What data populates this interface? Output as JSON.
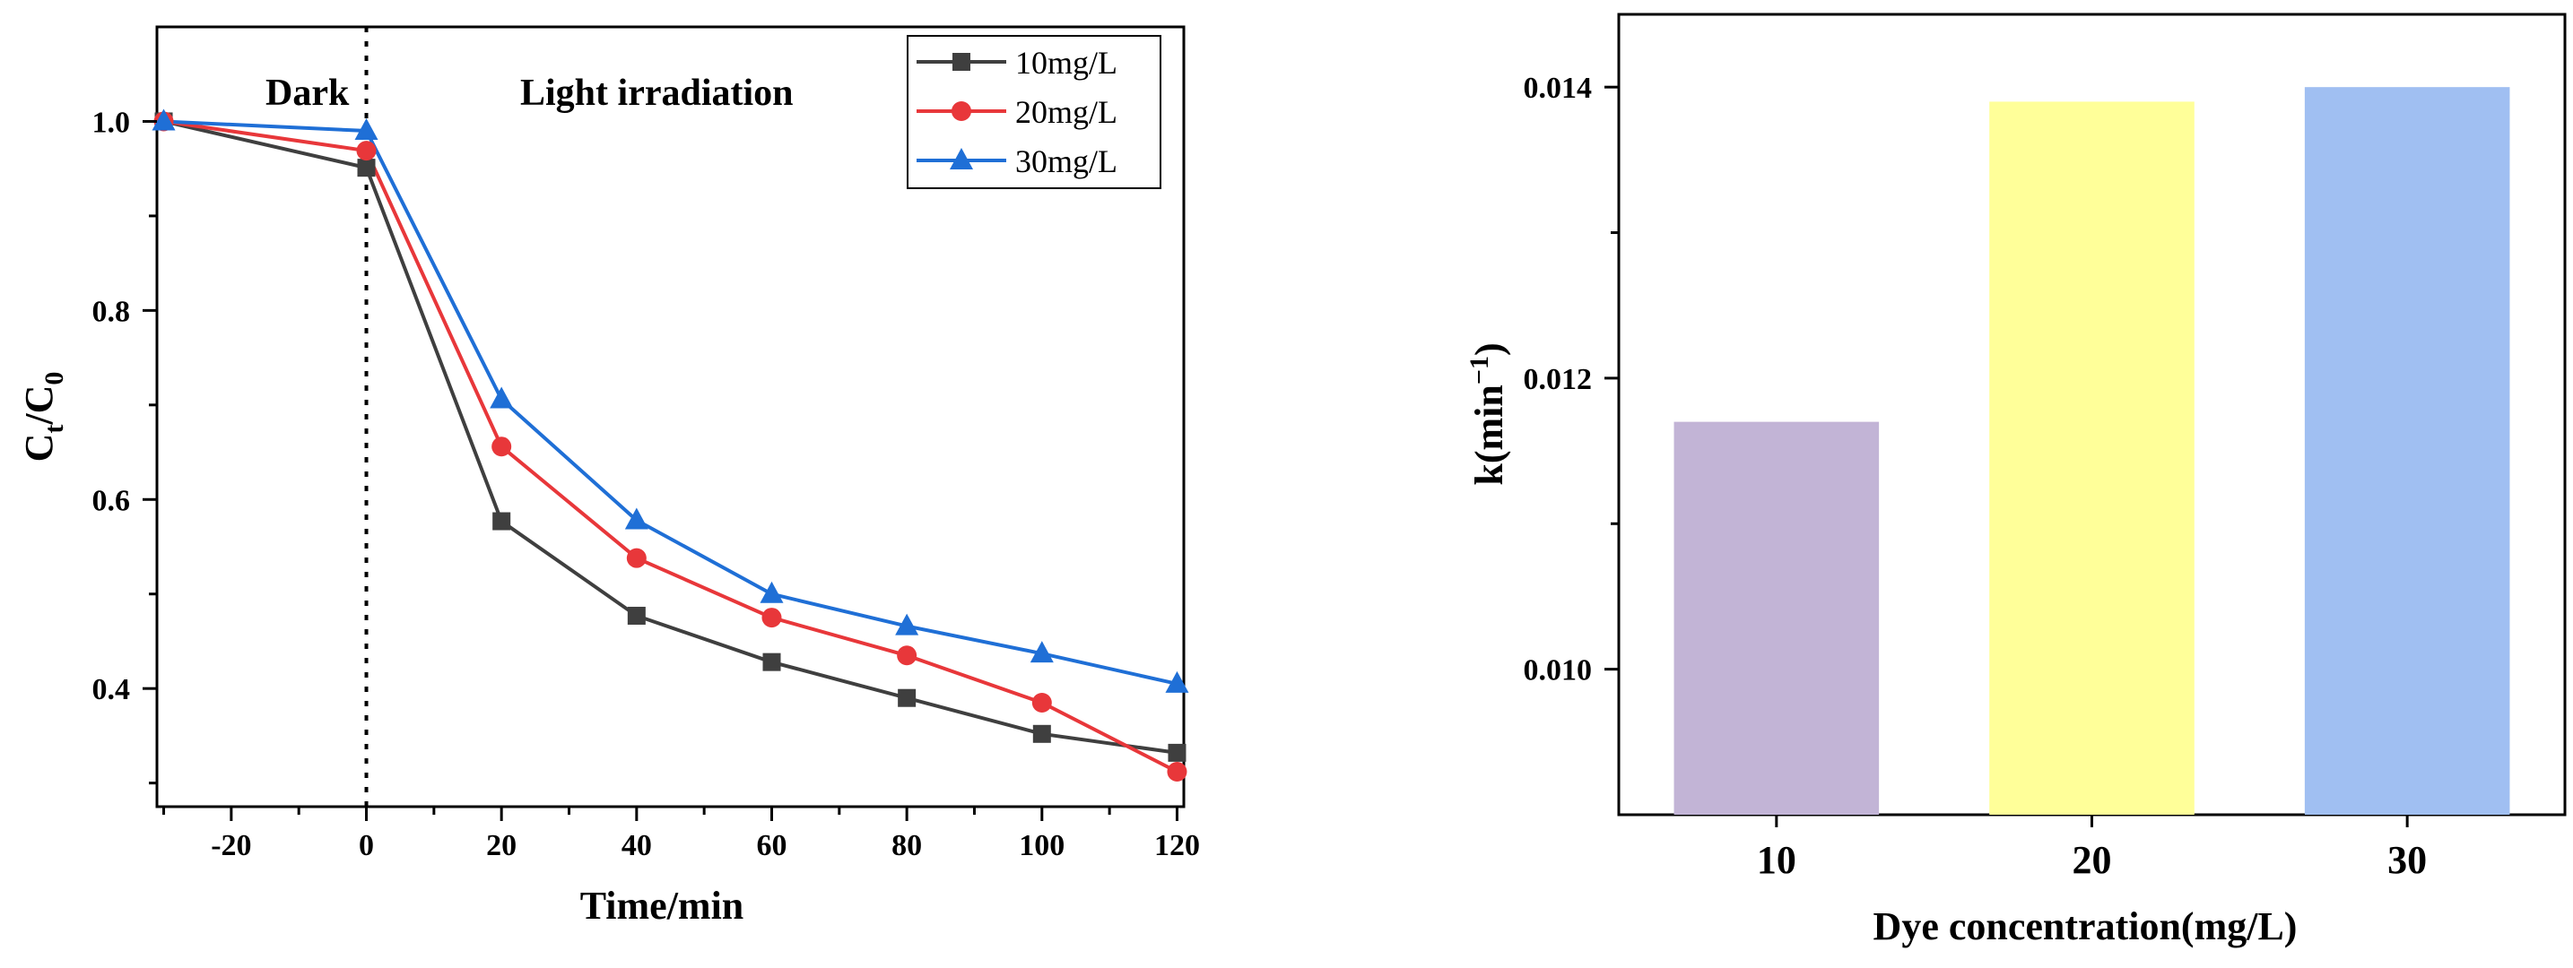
{
  "chart_data": [
    {
      "type": "line",
      "title": "",
      "xlabel": "Time/min",
      "ylabel_main": "C",
      "ylabel_sub1": "t",
      "ylabel_mid": "/C",
      "ylabel_sub2": "0",
      "xlim": [
        -31,
        121
      ],
      "ylim": [
        0.275,
        1.1
      ],
      "xticks": [
        -20,
        0,
        20,
        40,
        60,
        80,
        100,
        120
      ],
      "xtick_labels": [
        "-20",
        "0",
        "20",
        "40",
        "60",
        "80",
        "100",
        "120"
      ],
      "yticks": [
        0.4,
        0.6,
        0.8,
        1.0
      ],
      "ytick_labels": [
        "0.4",
        "0.6",
        "0.8",
        "1.0"
      ],
      "annotations": [
        "Dark",
        "Light irradiation"
      ],
      "divider_x": 0,
      "legend_position": "top-right",
      "x": [
        -30,
        0,
        20,
        40,
        60,
        80,
        100,
        120
      ],
      "series": [
        {
          "name": "10mg/L",
          "marker": "square",
          "color": "#3f3f3f",
          "values": [
            1.0,
            0.951,
            0.577,
            0.477,
            0.428,
            0.39,
            0.352,
            0.332
          ]
        },
        {
          "name": "20mg/L",
          "marker": "circle",
          "color": "#e8373a",
          "values": [
            1.0,
            0.969,
            0.656,
            0.538,
            0.475,
            0.435,
            0.385,
            0.312
          ]
        },
        {
          "name": "30mg/L",
          "marker": "triangle",
          "color": "#1f6fd6",
          "values": [
            1.0,
            0.99,
            0.706,
            0.578,
            0.5,
            0.466,
            0.437,
            0.405
          ]
        }
      ]
    },
    {
      "type": "bar",
      "title": "",
      "xlabel": "Dye concentration(mg/L)",
      "ylabel_main": "k(min",
      "ylabel_sup": "−1",
      "ylabel_end": ")",
      "ylim": [
        0.009,
        0.0145
      ],
      "yticks": [
        0.01,
        0.012,
        0.014
      ],
      "ytick_labels": [
        "0.010",
        "0.012",
        "0.014"
      ],
      "categories": [
        "10",
        "20",
        "30"
      ],
      "values": [
        0.0117,
        0.0139,
        0.014
      ],
      "colors": [
        "#c2b4d6",
        "#ffff99",
        "#a0bff2"
      ]
    }
  ]
}
